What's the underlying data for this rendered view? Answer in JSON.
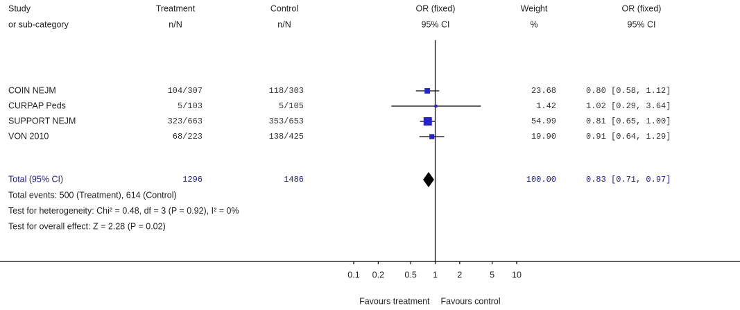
{
  "chart_data": {
    "type": "forest",
    "columns": [
      {
        "title": "Study",
        "subtitle": "or sub-category"
      },
      {
        "title": "Treatment",
        "subtitle": "n/N"
      },
      {
        "title": "Control",
        "subtitle": "n/N"
      },
      {
        "title": "OR (fixed)",
        "subtitle": "95% CI"
      },
      {
        "title": "Weight",
        "subtitle": "%"
      },
      {
        "title": "OR (fixed)",
        "subtitle": "95% CI"
      }
    ],
    "studies": [
      {
        "name": "COIN NEJM",
        "treatment": "104/307",
        "control": "118/303",
        "weight": 23.68,
        "weight_label": "23.68",
        "or": 0.8,
        "ci": [
          0.58,
          1.12
        ],
        "or_label": "0.80 [0.58, 1.12]"
      },
      {
        "name": "CURPAP Peds",
        "treatment": "5/103",
        "control": "5/105",
        "weight": 1.42,
        "weight_label": "1.42",
        "or": 1.02,
        "ci": [
          0.29,
          3.64
        ],
        "or_label": "1.02 [0.29, 3.64]"
      },
      {
        "name": "SUPPORT NEJM",
        "treatment": "323/663",
        "control": "353/653",
        "weight": 54.99,
        "weight_label": "54.99",
        "or": 0.81,
        "ci": [
          0.65,
          1.0
        ],
        "or_label": "0.81 [0.65, 1.00]"
      },
      {
        "name": "VON 2010",
        "treatment": "68/223",
        "control": "138/425",
        "weight": 19.9,
        "weight_label": "19.90",
        "or": 0.91,
        "ci": [
          0.64,
          1.29
        ],
        "or_label": "0.91 [0.64, 1.29]"
      }
    ],
    "total": {
      "name": "Total (95% CI)",
      "treatment": 1296,
      "control": 1486,
      "weight": 100,
      "weight_label": "100.00",
      "or": 0.83,
      "ci": [
        0.71,
        0.97
      ],
      "or_label": "0.83 [0.71, 0.97]"
    },
    "notes": [
      "Total events: 500 (Treatment), 614 (Control)",
      "Test for heterogeneity: Chi² = 0.48, df = 3 (P = 0.92), I² = 0%",
      "Test for overall effect: Z = 2.28 (P = 0.02)"
    ],
    "x_scale": "log",
    "xlim": [
      0.1,
      10
    ],
    "xticks": [
      0.1,
      0.2,
      0.5,
      1,
      2,
      5,
      10
    ],
    "xlabel_left": "Favours treatment",
    "xlabel_right": "Favours control",
    "marker_color": "#2424c8",
    "total_color": "#000000"
  }
}
